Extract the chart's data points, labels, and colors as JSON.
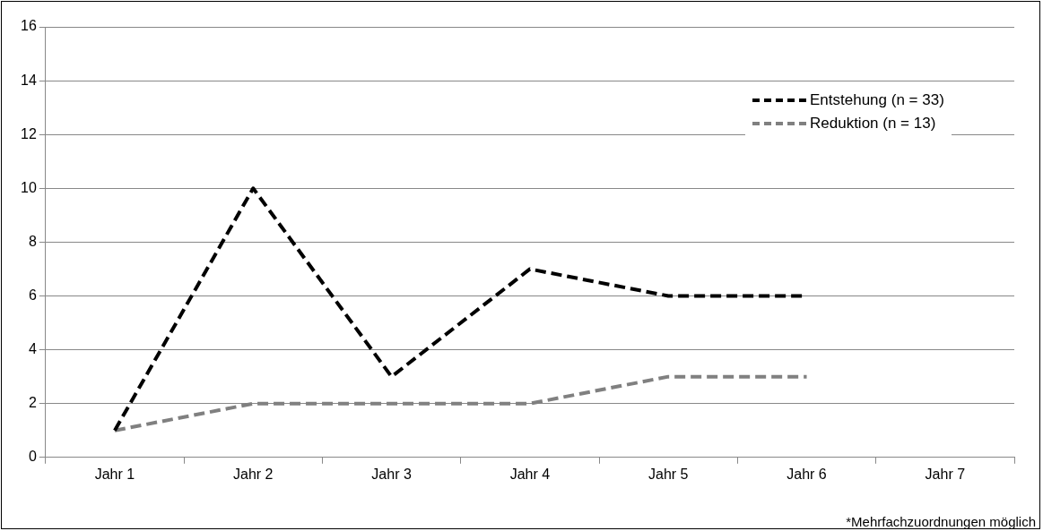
{
  "chart_data": {
    "type": "line",
    "categories": [
      "Jahr 1",
      "Jahr 2",
      "Jahr 3",
      "Jahr 4",
      "Jahr 5",
      "Jahr 6",
      "Jahr 7"
    ],
    "series": [
      {
        "name": "Entstehung (n = 33)",
        "color": "#000000",
        "line_style": "dashed",
        "values": [
          1,
          10,
          3,
          7,
          6,
          6,
          null
        ]
      },
      {
        "name": "Reduktion (n = 13)",
        "color": "#808080",
        "line_style": "dashed",
        "values": [
          1,
          2,
          2,
          2,
          3,
          3,
          null
        ]
      }
    ],
    "ylim": [
      0,
      16
    ],
    "yticks": [
      0,
      2,
      4,
      6,
      8,
      10,
      12,
      14,
      16
    ],
    "grid": "y",
    "legend": "top right",
    "marker": "none",
    "annotations": [
      "*Mehrfachzuordnungen möglich"
    ]
  }
}
